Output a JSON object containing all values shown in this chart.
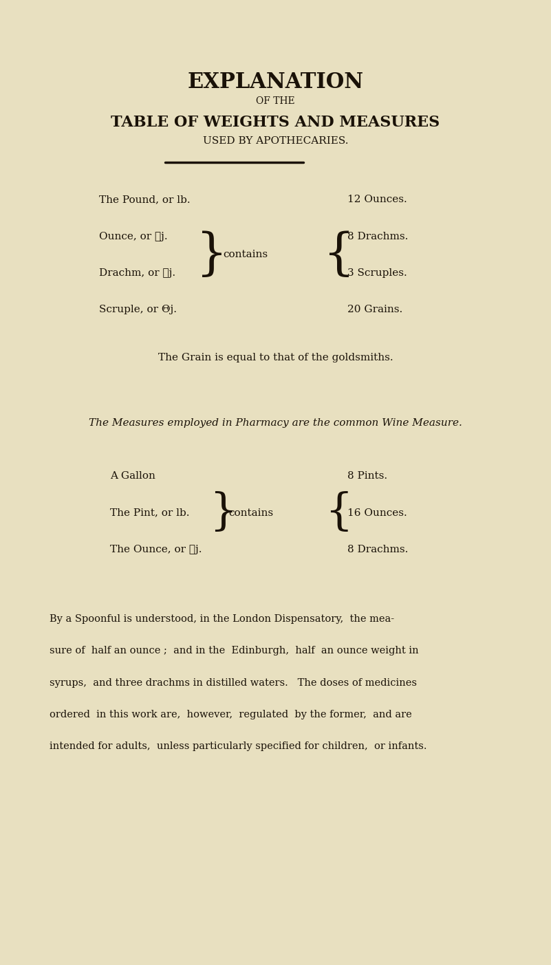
{
  "bg_color": "#e8e0c0",
  "text_color": "#1a1208",
  "title1": "EXPLANATION",
  "title2": "OF THE",
  "title3": "TABLE OF WEIGHTS AND MEASURES",
  "title4": "USED BY APOTHECARIES.",
  "weights_left": [
    "The Pound, or lb.",
    "Ounce, or ᭞j.",
    "Drachm, or ᭝j.",
    "Scruple, or Θj."
  ],
  "weights_contains": "contains",
  "weights_right": [
    "12 Ounces.",
    "8 Drachms.",
    "3 Scruples.",
    "20 Grains."
  ],
  "grain_note": "The Grain is equal to that of the goldsmiths.",
  "measures_italic": "The Measures employed in Pharmacy are the common Wine Measure.",
  "measures_left": [
    "A Gallon",
    "The Pint, or lb.",
    "The Ounce, or ᭞j."
  ],
  "measures_contains": "contains",
  "measures_right": [
    "8 Pints.",
    "16 Ounces.",
    "8 Drachms."
  ],
  "spoonful_text": "By a Spoonful is understood, in the London Dispensatory,  the mea-\nsure of  half an ounce ;  and in the  Edinburgh,  half  an ounce weight in\nsyrups,  and three drachms in distilled waters.   The doses of medicines\nordered  in this work are,  however,  regulated  by the former,  and are\nintended for adults,  unless particularly specified for children,  or infants."
}
